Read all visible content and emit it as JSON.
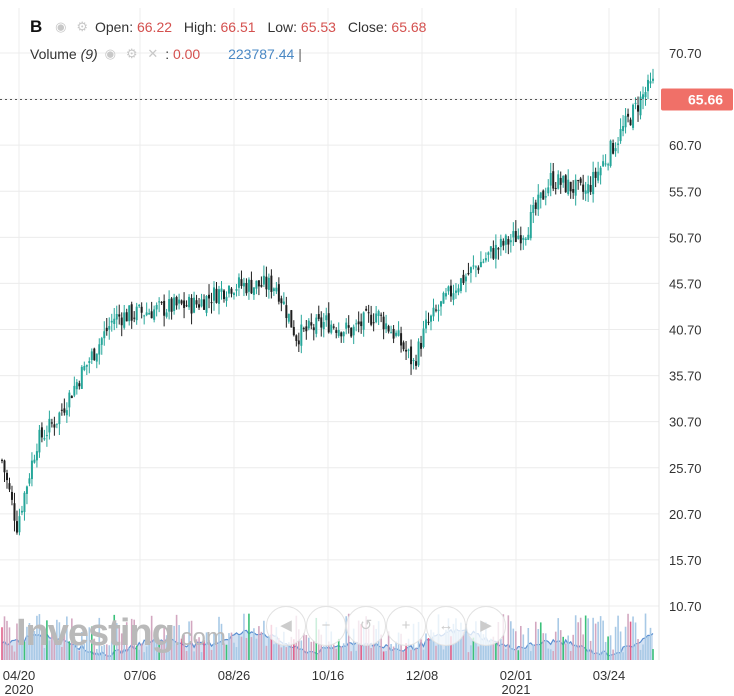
{
  "legend": {
    "symbol": "B",
    "open_label": "Open:",
    "open": "66.22",
    "high_label": "High:",
    "high": "66.51",
    "low_label": "Low:",
    "low": "65.53",
    "close_label": "Close:",
    "close": "65.68",
    "volume_label": "Volume",
    "volume_period": "(9)",
    "volume_value": "0.00",
    "volume_ma": "223787.44"
  },
  "watermark": {
    "brand": "Investing",
    "suffix": ".com"
  },
  "colors": {
    "up": "#26a69a",
    "down": "#1e1e1e",
    "last_price_bg": "#f07068",
    "volume_area": "#c9dbf0",
    "volume_line": "#5b8fd1",
    "volume_bar": "#c0c4cc"
  },
  "chart_data": {
    "type": "candlestick",
    "title": "B",
    "y_ticks": [
      "70.70",
      "65.70",
      "60.70",
      "55.70",
      "50.70",
      "45.70",
      "40.70",
      "35.70",
      "30.70",
      "25.70",
      "20.70",
      "15.70",
      "10.70"
    ],
    "ylim": [
      5.7,
      72.7
    ],
    "last_price": "65.66",
    "x_ticks": [
      {
        "label": "04/20",
        "year": "2020"
      },
      {
        "label": "07/06",
        "year": ""
      },
      {
        "label": "08/26",
        "year": ""
      },
      {
        "label": "10/16",
        "year": ""
      },
      {
        "label": "12/08",
        "year": ""
      },
      {
        "label": "02/01",
        "year": "2021"
      },
      {
        "label": "03/24",
        "year": ""
      }
    ],
    "trend": {
      "sessions": 262,
      "keypoints": [
        [
          0,
          26.5
        ],
        [
          6,
          19.5
        ],
        [
          14,
          28.5
        ],
        [
          22,
          31
        ],
        [
          32,
          36
        ],
        [
          45,
          42
        ],
        [
          65,
          43
        ],
        [
          78,
          43.5
        ],
        [
          92,
          45.5
        ],
        [
          110,
          45.5
        ],
        [
          118,
          40
        ],
        [
          130,
          41.5
        ],
        [
          140,
          40.5
        ],
        [
          150,
          42.5
        ],
        [
          158,
          40
        ],
        [
          165,
          37
        ],
        [
          170,
          41
        ],
        [
          182,
          45.5
        ],
        [
          196,
          49
        ],
        [
          210,
          51.5
        ],
        [
          220,
          57
        ],
        [
          234,
          55.5
        ],
        [
          248,
          62
        ],
        [
          258,
          66.5
        ],
        [
          266,
          68.5
        ],
        [
          272,
          69
        ],
        [
          276,
          66
        ],
        [
          280,
          63
        ],
        [
          288,
          62
        ],
        [
          296,
          62.5
        ],
        [
          300,
          64
        ],
        [
          306,
          66.5
        ],
        [
          310,
          65.7
        ]
      ]
    },
    "volume": {
      "axis_max": "10.70",
      "level": "low, mostly below one third of the volume pane"
    },
    "grid": true
  }
}
